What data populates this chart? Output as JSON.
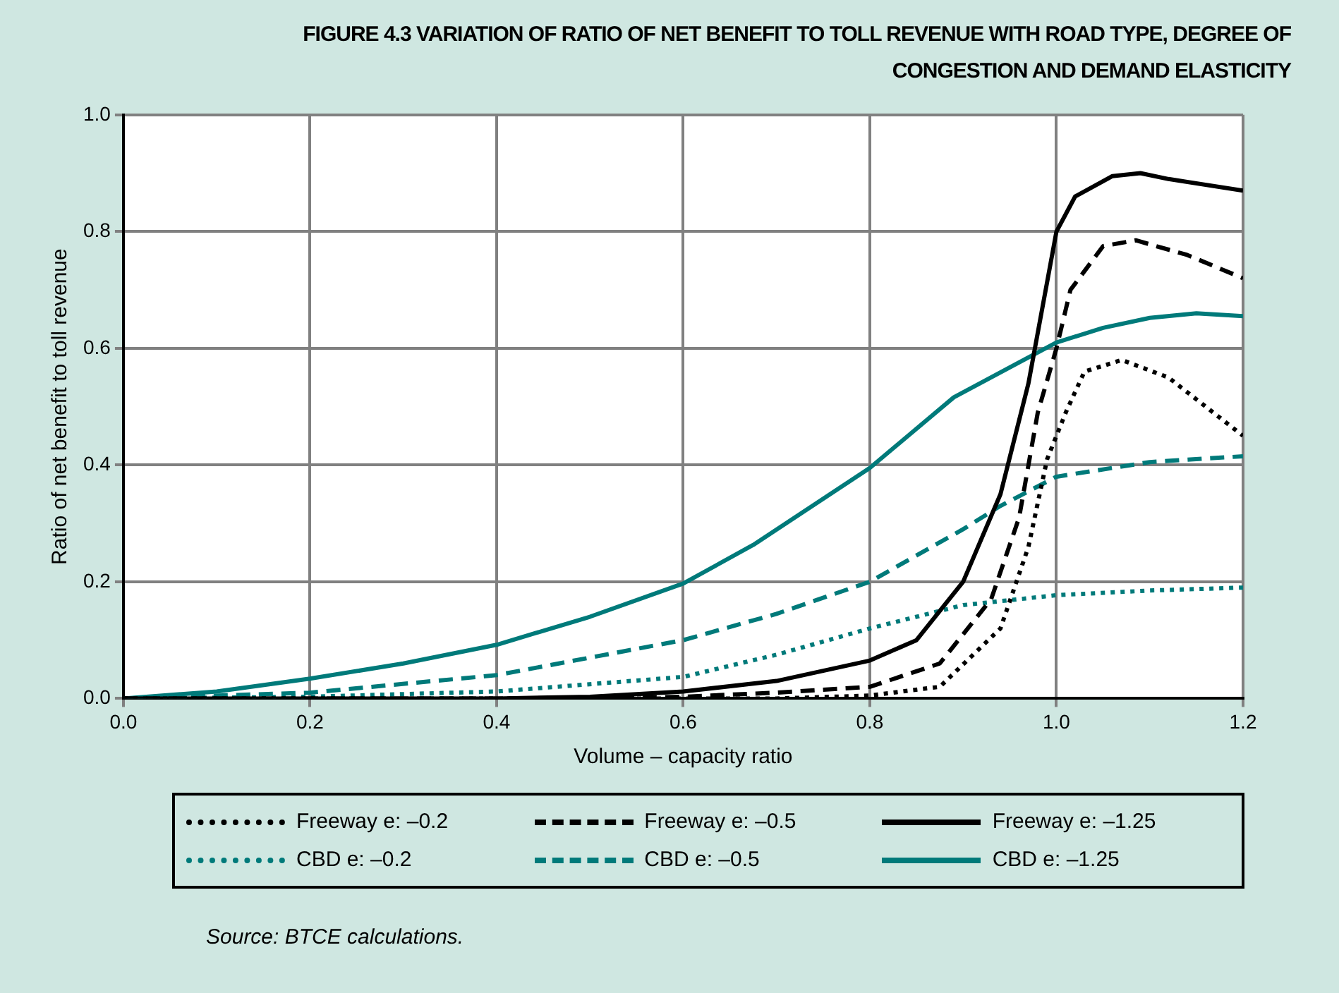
{
  "chart_data": {
    "type": "line",
    "title": "FIGURE 4.3  VARIATION OF RATIO OF NET BENEFIT TO TOLL REVENUE WITH ROAD TYPE, DEGREE OF CONGESTION AND DEMAND ELASTICITY",
    "xlabel": "Volume – capacity ratio",
    "ylabel": "Ratio of net benefit to toll revenue",
    "xlim": [
      0,
      1.2
    ],
    "xticks": [
      {
        "value": 0,
        "label": "0.0"
      },
      0.2,
      0.4,
      0.6,
      0.8,
      {
        "value": 1,
        "label": "1.0"
      },
      1.2
    ],
    "ylim": [
      0,
      1
    ],
    "yticks": [
      {
        "value": 0,
        "label": "0.0"
      },
      0.2,
      0.4,
      0.6,
      0.8,
      {
        "value": 1,
        "label": "1.0"
      }
    ],
    "grid": true,
    "legend": "bottom",
    "marker": "none",
    "series": [
      {
        "name": "Freeway e: –0.2",
        "color": "#000000",
        "line_style": "dotted",
        "x": [
          0,
          0.7,
          0.8,
          0.875,
          0.94,
          0.97,
          0.99,
          1.01,
          1.03,
          1.07,
          1.12,
          1.2
        ],
        "values": [
          0,
          0,
          0.005,
          0.02,
          0.12,
          0.26,
          0.41,
          0.49,
          0.56,
          0.58,
          0.55,
          0.45
        ]
      },
      {
        "name": "Freeway e: –0.5",
        "color": "#000000",
        "line_style": "dashed",
        "x": [
          0,
          0.5,
          0.6,
          0.7,
          0.8,
          0.875,
          0.93,
          0.96,
          0.98,
          1.0,
          1.015,
          1.05,
          1.085,
          1.14,
          1.2
        ],
        "values": [
          0,
          0,
          0.003,
          0.01,
          0.02,
          0.06,
          0.17,
          0.31,
          0.49,
          0.6,
          0.7,
          0.775,
          0.785,
          0.76,
          0.72
        ]
      },
      {
        "name": "Freeway e: –1.25",
        "color": "#000000",
        "line_style": "solid",
        "x": [
          0,
          0.4,
          0.5,
          0.6,
          0.7,
          0.8,
          0.85,
          0.9,
          0.94,
          0.97,
          1.0,
          1.02,
          1.06,
          1.09,
          1.12,
          1.2
        ],
        "values": [
          0,
          0,
          0.003,
          0.012,
          0.03,
          0.065,
          0.1,
          0.2,
          0.35,
          0.54,
          0.8,
          0.86,
          0.895,
          0.9,
          0.89,
          0.87
        ]
      },
      {
        "name": "CBD e: –0.2",
        "color": "#007a7a",
        "line_style": "dotted",
        "x": [
          0,
          0.2,
          0.4,
          0.6,
          0.7,
          0.8,
          0.9,
          1.0,
          1.1,
          1.2
        ],
        "values": [
          0,
          0.003,
          0.012,
          0.037,
          0.075,
          0.12,
          0.16,
          0.177,
          0.185,
          0.19
        ]
      },
      {
        "name": "CBD e: –0.5",
        "color": "#007a7a",
        "line_style": "dashed",
        "x": [
          0,
          0.2,
          0.4,
          0.6,
          0.7,
          0.8,
          0.9,
          0.94,
          1.0,
          1.1,
          1.2
        ],
        "values": [
          0,
          0.01,
          0.04,
          0.1,
          0.145,
          0.2,
          0.29,
          0.33,
          0.38,
          0.405,
          0.415
        ]
      },
      {
        "name": "CBD e: –1.25",
        "color": "#007a7a",
        "line_style": "solid",
        "x": [
          0,
          0.1,
          0.2,
          0.3,
          0.4,
          0.5,
          0.6,
          0.675,
          0.8,
          0.89,
          1.0,
          1.05,
          1.1,
          1.15,
          1.2
        ],
        "values": [
          0,
          0.012,
          0.034,
          0.06,
          0.092,
          0.14,
          0.197,
          0.263,
          0.395,
          0.516,
          0.61,
          0.635,
          0.652,
          0.66,
          0.655
        ]
      }
    ],
    "annotations": [
      "Source: BTCE calculations."
    ]
  }
}
